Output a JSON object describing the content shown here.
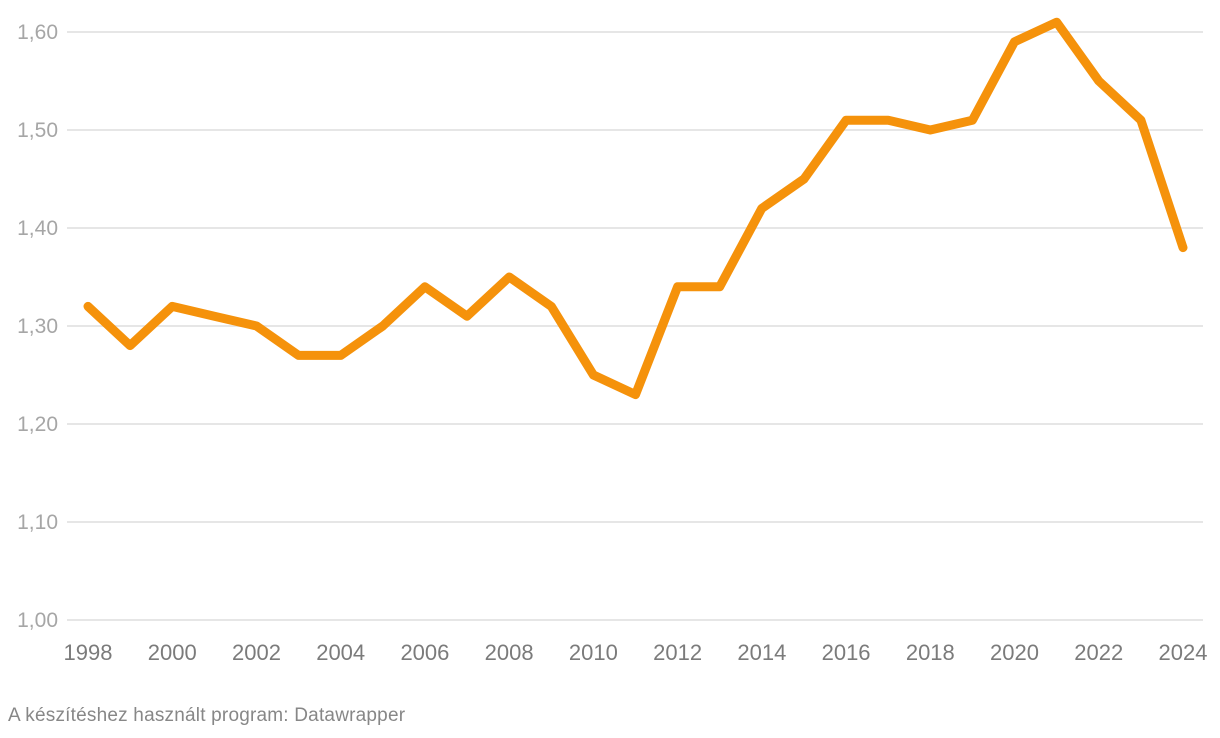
{
  "chart_data": {
    "type": "line",
    "title": "",
    "xlabel": "",
    "ylabel": "",
    "x": [
      1998,
      1999,
      2000,
      2001,
      2002,
      2003,
      2004,
      2005,
      2006,
      2007,
      2008,
      2009,
      2010,
      2011,
      2012,
      2013,
      2014,
      2015,
      2016,
      2017,
      2018,
      2019,
      2020,
      2021,
      2022,
      2023,
      2024
    ],
    "values": [
      1.32,
      1.28,
      1.32,
      1.31,
      1.3,
      1.27,
      1.27,
      1.3,
      1.34,
      1.31,
      1.35,
      1.32,
      1.25,
      1.23,
      1.34,
      1.34,
      1.42,
      1.45,
      1.51,
      1.51,
      1.5,
      1.51,
      1.59,
      1.61,
      1.55,
      1.51,
      1.38
    ],
    "xlim": [
      1998,
      2024
    ],
    "ylim": [
      1.0,
      1.62
    ],
    "grid": "horizontal-only",
    "legend": "none",
    "y_ticks": [
      {
        "value": 1.0,
        "label": "1,00"
      },
      {
        "value": 1.1,
        "label": "1,10"
      },
      {
        "value": 1.2,
        "label": "1,20"
      },
      {
        "value": 1.3,
        "label": "1,30"
      },
      {
        "value": 1.4,
        "label": "1,40"
      },
      {
        "value": 1.5,
        "label": "1,50"
      },
      {
        "value": 1.6,
        "label": "1,60"
      }
    ],
    "x_ticks": [
      {
        "value": 1998,
        "label": "1998"
      },
      {
        "value": 2000,
        "label": "2000"
      },
      {
        "value": 2002,
        "label": "2002"
      },
      {
        "value": 2004,
        "label": "2004"
      },
      {
        "value": 2006,
        "label": "2006"
      },
      {
        "value": 2008,
        "label": "2008"
      },
      {
        "value": 2010,
        "label": "2010"
      },
      {
        "value": 2012,
        "label": "2012"
      },
      {
        "value": 2014,
        "label": "2014"
      },
      {
        "value": 2016,
        "label": "2016"
      },
      {
        "value": 2018,
        "label": "2018"
      },
      {
        "value": 2020,
        "label": "2020"
      },
      {
        "value": 2022,
        "label": "2022"
      },
      {
        "value": 2024,
        "label": "2024"
      }
    ]
  },
  "colors": {
    "line": "#F5920B",
    "gridline": "#e6e6e6",
    "y_tick_label": "#a6a6a6",
    "x_tick_label": "#7b7b7b",
    "background": "#ffffff"
  },
  "footer": {
    "attribution": "A készítéshez használt program: Datawrapper"
  }
}
